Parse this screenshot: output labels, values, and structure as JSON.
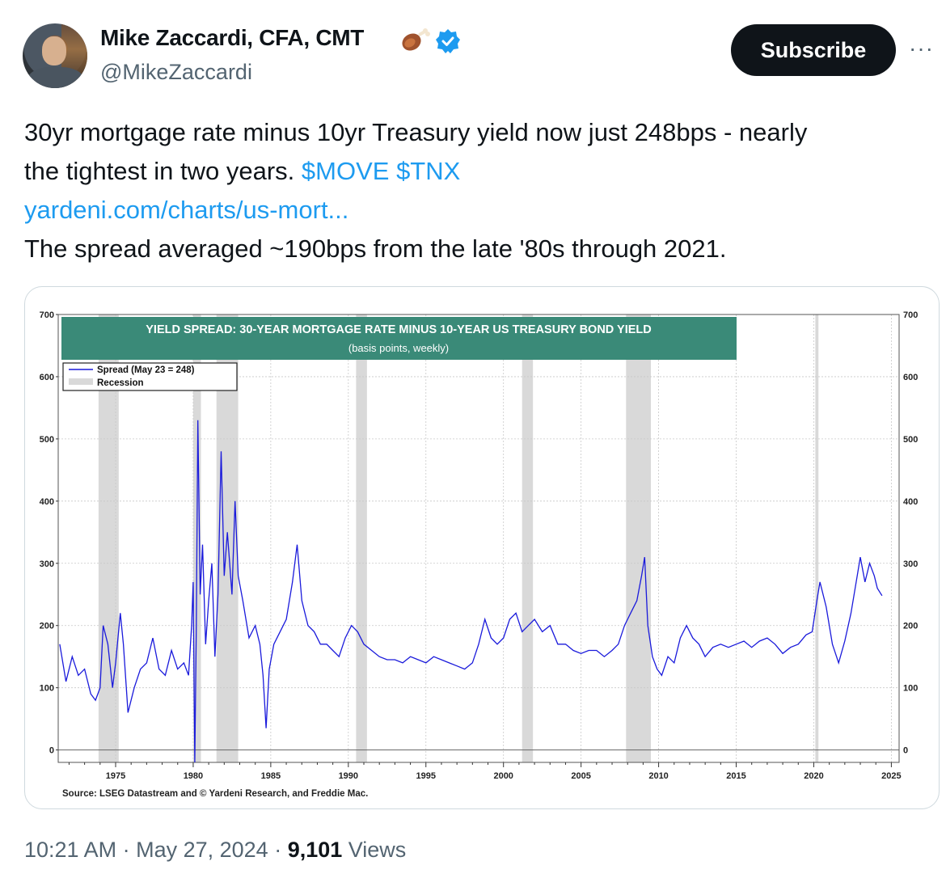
{
  "author": {
    "name": "Mike Zaccardi, CFA, CMT",
    "handle": "@MikeZaccardi",
    "emoji": "meat-on-bone-icon",
    "verified": true
  },
  "actions": {
    "subscribe_label": "Subscribe",
    "more_label": "···"
  },
  "tweet": {
    "line1": "30yr mortgage rate minus 10yr Treasury yield now just 248bps - nearly",
    "line2_text": "the tightest in two years. ",
    "cashtag1": "$MOVE",
    "cashtag2": "$TNX",
    "link": "yardeni.com/charts/us-mort...",
    "line4": "The spread averaged ~190bps from the late '80s through 2021."
  },
  "chart_data": {
    "type": "line",
    "title": "YIELD SPREAD: 30-YEAR MORTGAGE RATE MINUS 10-YEAR US TREASURY BOND YIELD",
    "subtitle": "(basis points, weekly)",
    "legend": {
      "series_label": "Spread (May 23 = 248)",
      "recession_label": "Recession",
      "placement": "top-left"
    },
    "source": "Source: LSEG Datastream and © Yardeni Research, and Freddie Mac.",
    "ylim": [
      -20,
      700
    ],
    "yticks": [
      0,
      100,
      200,
      300,
      400,
      500,
      600,
      700
    ],
    "xlim": [
      1971.3,
      2025.5
    ],
    "xticks": [
      1975,
      1980,
      1985,
      1990,
      1995,
      2000,
      2005,
      2010,
      2015,
      2020,
      2025
    ],
    "grid": true,
    "series_color": "#1a1adb",
    "recession_color": "#d9d9d9",
    "title_bg": "#3a8a78",
    "recessions": [
      [
        1973.9,
        1975.2
      ],
      [
        1980.0,
        1980.5
      ],
      [
        1981.5,
        1982.9
      ],
      [
        1990.5,
        1991.2
      ],
      [
        2001.2,
        2001.9
      ],
      [
        2007.9,
        2009.5
      ],
      [
        2020.1,
        2020.3
      ]
    ],
    "series": [
      {
        "name": "Spread (May 23 = 248)",
        "points": [
          [
            1971.4,
            170
          ],
          [
            1971.8,
            110
          ],
          [
            1972.2,
            150
          ],
          [
            1972.6,
            120
          ],
          [
            1973.0,
            130
          ],
          [
            1973.4,
            90
          ],
          [
            1973.7,
            80
          ],
          [
            1974.0,
            100
          ],
          [
            1974.2,
            200
          ],
          [
            1974.5,
            170
          ],
          [
            1974.8,
            100
          ],
          [
            1975.0,
            140
          ],
          [
            1975.3,
            220
          ],
          [
            1975.5,
            170
          ],
          [
            1975.8,
            60
          ],
          [
            1976.2,
            100
          ],
          [
            1976.6,
            130
          ],
          [
            1977.0,
            140
          ],
          [
            1977.4,
            180
          ],
          [
            1977.8,
            130
          ],
          [
            1978.2,
            120
          ],
          [
            1978.6,
            160
          ],
          [
            1979.0,
            130
          ],
          [
            1979.4,
            140
          ],
          [
            1979.7,
            120
          ],
          [
            1979.9,
            200
          ],
          [
            1980.0,
            270
          ],
          [
            1980.1,
            -20
          ],
          [
            1980.2,
            200
          ],
          [
            1980.3,
            530
          ],
          [
            1980.45,
            250
          ],
          [
            1980.6,
            330
          ],
          [
            1980.8,
            170
          ],
          [
            1981.0,
            240
          ],
          [
            1981.2,
            300
          ],
          [
            1981.4,
            150
          ],
          [
            1981.6,
            250
          ],
          [
            1981.8,
            480
          ],
          [
            1982.0,
            280
          ],
          [
            1982.2,
            350
          ],
          [
            1982.5,
            250
          ],
          [
            1982.7,
            400
          ],
          [
            1982.9,
            280
          ],
          [
            1983.2,
            240
          ],
          [
            1983.6,
            180
          ],
          [
            1984.0,
            200
          ],
          [
            1984.3,
            170
          ],
          [
            1984.5,
            120
          ],
          [
            1984.7,
            35
          ],
          [
            1984.9,
            130
          ],
          [
            1985.2,
            170
          ],
          [
            1985.6,
            190
          ],
          [
            1986.0,
            210
          ],
          [
            1986.4,
            270
          ],
          [
            1986.7,
            330
          ],
          [
            1987.0,
            240
          ],
          [
            1987.4,
            200
          ],
          [
            1987.8,
            190
          ],
          [
            1988.2,
            170
          ],
          [
            1988.6,
            170
          ],
          [
            1989.0,
            160
          ],
          [
            1989.4,
            150
          ],
          [
            1989.8,
            180
          ],
          [
            1990.2,
            200
          ],
          [
            1990.6,
            190
          ],
          [
            1991.0,
            170
          ],
          [
            1991.5,
            160
          ],
          [
            1992.0,
            150
          ],
          [
            1992.5,
            145
          ],
          [
            1993.0,
            145
          ],
          [
            1993.5,
            140
          ],
          [
            1994.0,
            150
          ],
          [
            1994.5,
            145
          ],
          [
            1995.0,
            140
          ],
          [
            1995.5,
            150
          ],
          [
            1996.0,
            145
          ],
          [
            1996.5,
            140
          ],
          [
            1997.0,
            135
          ],
          [
            1997.5,
            130
          ],
          [
            1998.0,
            140
          ],
          [
            1998.4,
            170
          ],
          [
            1998.8,
            210
          ],
          [
            1999.2,
            180
          ],
          [
            1999.6,
            170
          ],
          [
            2000.0,
            180
          ],
          [
            2000.4,
            210
          ],
          [
            2000.8,
            220
          ],
          [
            2001.2,
            190
          ],
          [
            2001.6,
            200
          ],
          [
            2002.0,
            210
          ],
          [
            2002.5,
            190
          ],
          [
            2003.0,
            200
          ],
          [
            2003.5,
            170
          ],
          [
            2004.0,
            170
          ],
          [
            2004.5,
            160
          ],
          [
            2005.0,
            155
          ],
          [
            2005.5,
            160
          ],
          [
            2006.0,
            160
          ],
          [
            2006.5,
            150
          ],
          [
            2007.0,
            160
          ],
          [
            2007.4,
            170
          ],
          [
            2007.8,
            200
          ],
          [
            2008.2,
            220
          ],
          [
            2008.6,
            240
          ],
          [
            2008.9,
            280
          ],
          [
            2009.1,
            310
          ],
          [
            2009.3,
            200
          ],
          [
            2009.6,
            150
          ],
          [
            2009.9,
            130
          ],
          [
            2010.2,
            120
          ],
          [
            2010.6,
            150
          ],
          [
            2011.0,
            140
          ],
          [
            2011.4,
            180
          ],
          [
            2011.8,
            200
          ],
          [
            2012.2,
            180
          ],
          [
            2012.6,
            170
          ],
          [
            2013.0,
            150
          ],
          [
            2013.5,
            165
          ],
          [
            2014.0,
            170
          ],
          [
            2014.5,
            165
          ],
          [
            2015.0,
            170
          ],
          [
            2015.5,
            175
          ],
          [
            2016.0,
            165
          ],
          [
            2016.5,
            175
          ],
          [
            2017.0,
            180
          ],
          [
            2017.5,
            170
          ],
          [
            2018.0,
            155
          ],
          [
            2018.5,
            165
          ],
          [
            2019.0,
            170
          ],
          [
            2019.5,
            185
          ],
          [
            2019.9,
            190
          ],
          [
            2020.2,
            240
          ],
          [
            2020.4,
            270
          ],
          [
            2020.8,
            230
          ],
          [
            2021.2,
            170
          ],
          [
            2021.6,
            140
          ],
          [
            2022.0,
            175
          ],
          [
            2022.4,
            220
          ],
          [
            2022.8,
            280
          ],
          [
            2023.0,
            310
          ],
          [
            2023.3,
            270
          ],
          [
            2023.6,
            300
          ],
          [
            2023.9,
            280
          ],
          [
            2024.1,
            260
          ],
          [
            2024.4,
            248
          ]
        ]
      }
    ]
  },
  "footer": {
    "time": "10:21 AM",
    "separator": " · ",
    "date": "May 27, 2024",
    "views_count": "9,101",
    "views_label": " Views"
  }
}
